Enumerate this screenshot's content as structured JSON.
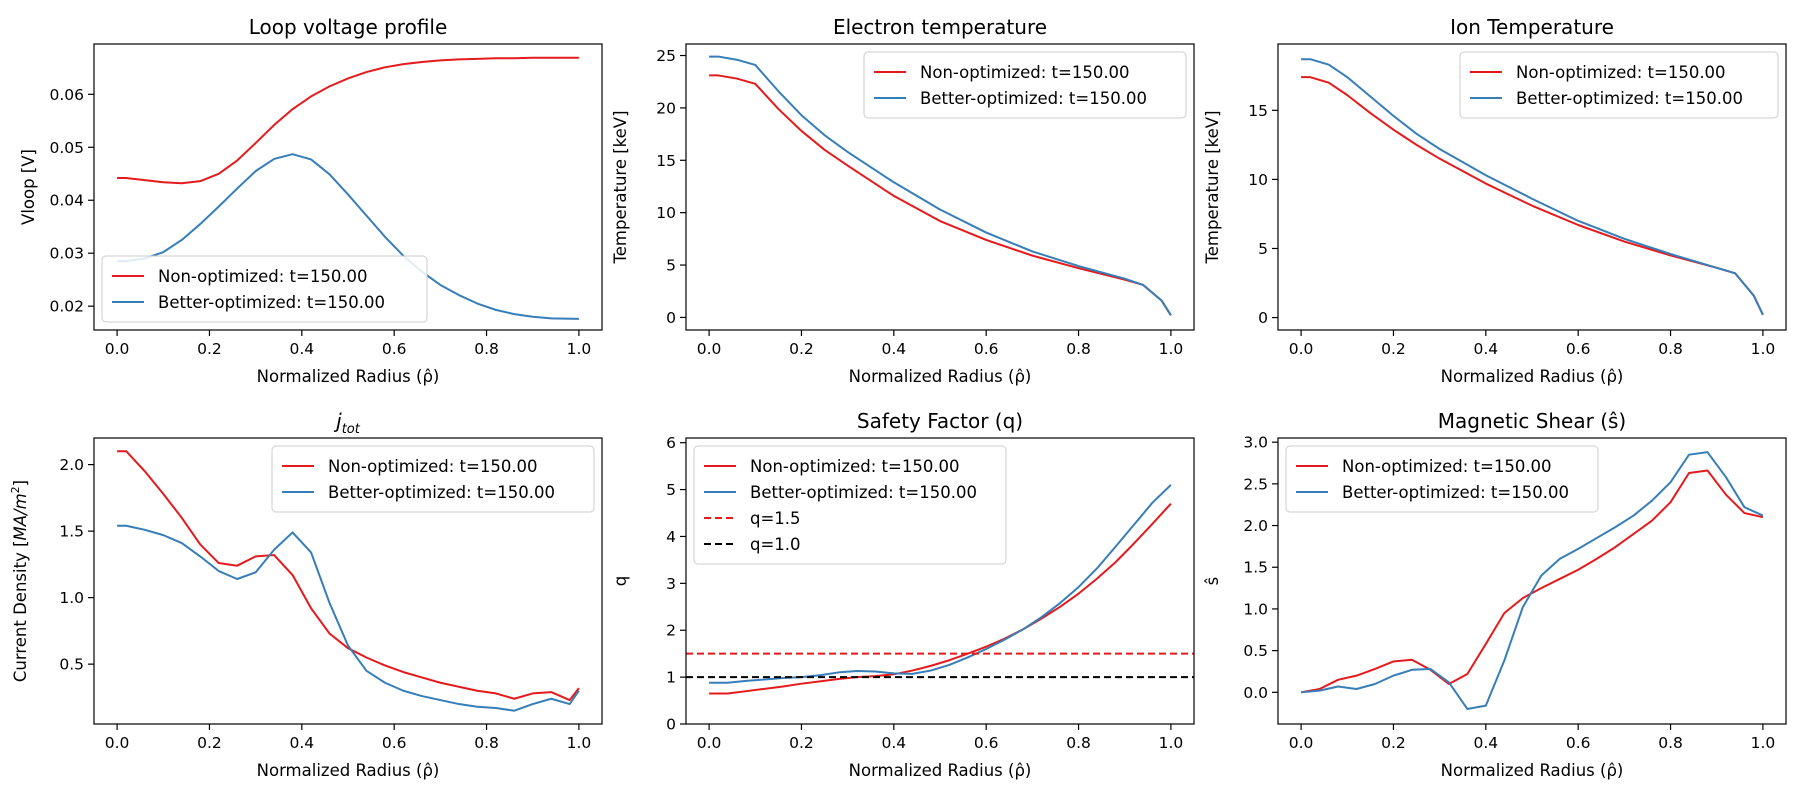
{
  "colors": {
    "red": "#e41a1c",
    "blue": "#377eb8",
    "black": "#000000"
  },
  "chart_data": [
    {
      "type": "line",
      "title": "Loop voltage profile",
      "xlabel": "Normalized Radius (ρ̂)",
      "ylabel": "Vloop [V]",
      "xlim": [
        -0.05,
        1.05
      ],
      "ylim": [
        0.0155,
        0.0695
      ],
      "xticks": [
        0,
        0.2,
        0.4,
        0.6,
        0.8,
        1.0
      ],
      "xtick_labels": [
        "0.0",
        "0.2",
        "0.4",
        "0.6",
        "0.8",
        "1.0"
      ],
      "yticks": [
        0.02,
        0.03,
        0.04,
        0.05,
        0.06
      ],
      "ytick_labels": [
        "0.02",
        "0.03",
        "0.04",
        "0.05",
        "0.06"
      ],
      "grid": false,
      "legend_loc": "lower-left",
      "series": [
        {
          "name": "Non-optimized: t=150.00",
          "color": "#e41a1c",
          "dash": "solid",
          "x": [
            0,
            0.02,
            0.06,
            0.1,
            0.14,
            0.18,
            0.22,
            0.26,
            0.3,
            0.34,
            0.38,
            0.42,
            0.46,
            0.5,
            0.54,
            0.58,
            0.62,
            0.66,
            0.7,
            0.74,
            0.78,
            0.82,
            0.86,
            0.9,
            0.94,
            1.0
          ],
          "y": [
            0.0442,
            0.0442,
            0.0438,
            0.0434,
            0.0432,
            0.0436,
            0.045,
            0.0475,
            0.0508,
            0.0542,
            0.0572,
            0.0596,
            0.0615,
            0.063,
            0.0642,
            0.0651,
            0.0657,
            0.0661,
            0.0664,
            0.0666,
            0.0667,
            0.0668,
            0.0668,
            0.0669,
            0.0669,
            0.0669
          ]
        },
        {
          "name": "Better-optimized: t=150.00",
          "color": "#377eb8",
          "dash": "solid",
          "x": [
            0,
            0.02,
            0.06,
            0.1,
            0.14,
            0.18,
            0.22,
            0.26,
            0.3,
            0.34,
            0.38,
            0.42,
            0.46,
            0.5,
            0.54,
            0.58,
            0.62,
            0.66,
            0.7,
            0.74,
            0.78,
            0.82,
            0.86,
            0.9,
            0.94,
            1.0
          ],
          "y": [
            0.0285,
            0.0285,
            0.029,
            0.0302,
            0.0325,
            0.0355,
            0.0388,
            0.0422,
            0.0455,
            0.0478,
            0.0487,
            0.0477,
            0.0449,
            0.0411,
            0.0371,
            0.0331,
            0.0295,
            0.0265,
            0.024,
            0.0221,
            0.0205,
            0.0193,
            0.0185,
            0.018,
            0.0177,
            0.0176
          ]
        }
      ]
    },
    {
      "type": "line",
      "title": "Electron temperature",
      "xlabel": "Normalized Radius (ρ̂)",
      "ylabel": "Temperature [keV]",
      "xlim": [
        -0.05,
        1.05
      ],
      "ylim": [
        -1.2,
        26.1
      ],
      "xticks": [
        0,
        0.2,
        0.4,
        0.6,
        0.8,
        1.0
      ],
      "xtick_labels": [
        "0.0",
        "0.2",
        "0.4",
        "0.6",
        "0.8",
        "1.0"
      ],
      "yticks": [
        0,
        5,
        10,
        15,
        20,
        25
      ],
      "ytick_labels": [
        "0",
        "5",
        "10",
        "15",
        "20",
        "25"
      ],
      "grid": false,
      "legend_loc": "top-right",
      "series": [
        {
          "name": "Non-optimized: t=150.00",
          "color": "#e41a1c",
          "dash": "solid",
          "x": [
            0,
            0.02,
            0.06,
            0.1,
            0.15,
            0.2,
            0.25,
            0.3,
            0.4,
            0.5,
            0.6,
            0.7,
            0.8,
            0.9,
            0.94,
            0.98,
            1.0
          ],
          "y": [
            23.1,
            23.1,
            22.8,
            22.3,
            19.9,
            17.8,
            16.0,
            14.5,
            11.6,
            9.2,
            7.4,
            5.9,
            4.7,
            3.6,
            3.1,
            1.6,
            0.2
          ]
        },
        {
          "name": "Better-optimized: t=150.00",
          "color": "#377eb8",
          "dash": "solid",
          "x": [
            0,
            0.02,
            0.06,
            0.1,
            0.15,
            0.2,
            0.25,
            0.3,
            0.4,
            0.5,
            0.6,
            0.7,
            0.8,
            0.9,
            0.94,
            0.98,
            1.0
          ],
          "y": [
            24.9,
            24.9,
            24.6,
            24.1,
            21.6,
            19.3,
            17.4,
            15.8,
            12.9,
            10.3,
            8.1,
            6.3,
            4.9,
            3.7,
            3.1,
            1.6,
            0.2
          ]
        }
      ]
    },
    {
      "type": "line",
      "title": "Ion Temperature",
      "xlabel": "Normalized Radius (ρ̂)",
      "ylabel": "Temperature [keV]",
      "xlim": [
        -0.05,
        1.05
      ],
      "ylim": [
        -0.9,
        19.8
      ],
      "xticks": [
        0,
        0.2,
        0.4,
        0.6,
        0.8,
        1.0
      ],
      "xtick_labels": [
        "0.0",
        "0.2",
        "0.4",
        "0.6",
        "0.8",
        "1.0"
      ],
      "yticks": [
        0,
        5,
        10,
        15
      ],
      "ytick_labels": [
        "0",
        "5",
        "10",
        "15"
      ],
      "grid": false,
      "legend_loc": "top-right",
      "series": [
        {
          "name": "Non-optimized: t=150.00",
          "color": "#e41a1c",
          "dash": "solid",
          "x": [
            0,
            0.02,
            0.06,
            0.1,
            0.15,
            0.2,
            0.25,
            0.3,
            0.4,
            0.5,
            0.6,
            0.7,
            0.8,
            0.9,
            0.94,
            0.98,
            1.0
          ],
          "y": [
            17.4,
            17.4,
            17.0,
            16.1,
            14.8,
            13.6,
            12.5,
            11.5,
            9.7,
            8.1,
            6.7,
            5.5,
            4.5,
            3.6,
            3.2,
            1.6,
            0.2
          ]
        },
        {
          "name": "Better-optimized: t=150.00",
          "color": "#377eb8",
          "dash": "solid",
          "x": [
            0,
            0.02,
            0.06,
            0.1,
            0.15,
            0.2,
            0.25,
            0.3,
            0.4,
            0.5,
            0.6,
            0.7,
            0.8,
            0.9,
            0.94,
            0.98,
            1.0
          ],
          "y": [
            18.7,
            18.7,
            18.3,
            17.4,
            16.0,
            14.6,
            13.3,
            12.2,
            10.3,
            8.6,
            7.0,
            5.7,
            4.6,
            3.6,
            3.2,
            1.6,
            0.2
          ]
        }
      ]
    },
    {
      "type": "line",
      "title": "j_tot",
      "xlabel": "Normalized Radius (ρ̂)",
      "ylabel": "Current Density [MA/m²]",
      "xlim": [
        -0.05,
        1.05
      ],
      "ylim": [
        0.05,
        2.2
      ],
      "xticks": [
        0,
        0.2,
        0.4,
        0.6,
        0.8,
        1.0
      ],
      "xtick_labels": [
        "0.0",
        "0.2",
        "0.4",
        "0.6",
        "0.8",
        "1.0"
      ],
      "yticks": [
        0.5,
        1.0,
        1.5,
        2.0
      ],
      "ytick_labels": [
        "0.5",
        "1.0",
        "1.5",
        "2.0"
      ],
      "grid": false,
      "legend_loc": "top-right",
      "series": [
        {
          "name": "Non-optimized: t=150.00",
          "color": "#e41a1c",
          "dash": "solid",
          "x": [
            0,
            0.02,
            0.06,
            0.1,
            0.14,
            0.18,
            0.22,
            0.26,
            0.3,
            0.34,
            0.38,
            0.42,
            0.46,
            0.5,
            0.54,
            0.58,
            0.62,
            0.66,
            0.7,
            0.74,
            0.78,
            0.82,
            0.86,
            0.9,
            0.94,
            0.98,
            1.0
          ],
          "y": [
            2.1,
            2.1,
            1.95,
            1.78,
            1.6,
            1.4,
            1.26,
            1.24,
            1.31,
            1.32,
            1.17,
            0.92,
            0.73,
            0.62,
            0.55,
            0.49,
            0.44,
            0.4,
            0.36,
            0.33,
            0.3,
            0.28,
            0.24,
            0.28,
            0.29,
            0.23,
            0.32
          ]
        },
        {
          "name": "Better-optimized: t=150.00",
          "color": "#377eb8",
          "dash": "solid",
          "x": [
            0,
            0.02,
            0.06,
            0.1,
            0.14,
            0.18,
            0.22,
            0.26,
            0.3,
            0.34,
            0.38,
            0.42,
            0.46,
            0.5,
            0.54,
            0.58,
            0.62,
            0.66,
            0.7,
            0.74,
            0.78,
            0.82,
            0.86,
            0.9,
            0.94,
            0.98,
            1.0
          ],
          "y": [
            1.54,
            1.54,
            1.51,
            1.47,
            1.41,
            1.31,
            1.2,
            1.14,
            1.19,
            1.36,
            1.49,
            1.34,
            0.96,
            0.64,
            0.45,
            0.36,
            0.3,
            0.26,
            0.23,
            0.2,
            0.18,
            0.17,
            0.15,
            0.2,
            0.24,
            0.2,
            0.3
          ]
        }
      ]
    },
    {
      "type": "line",
      "title": "Safety Factor (q)",
      "xlabel": "Normalized Radius (ρ̂)",
      "ylabel": "q",
      "xlim": [
        -0.05,
        1.05
      ],
      "ylim": [
        0,
        6.1
      ],
      "xticks": [
        0,
        0.2,
        0.4,
        0.6,
        0.8,
        1.0
      ],
      "xtick_labels": [
        "0.0",
        "0.2",
        "0.4",
        "0.6",
        "0.8",
        "1.0"
      ],
      "yticks": [
        0,
        1,
        2,
        3,
        4,
        5,
        6
      ],
      "ytick_labels": [
        "0",
        "1",
        "2",
        "3",
        "4",
        "5",
        "6"
      ],
      "grid": false,
      "legend_loc": "top-left",
      "series": [
        {
          "name": "Non-optimized: t=150.00",
          "color": "#e41a1c",
          "dash": "solid",
          "x": [
            0,
            0.04,
            0.08,
            0.12,
            0.16,
            0.2,
            0.24,
            0.28,
            0.32,
            0.36,
            0.4,
            0.44,
            0.48,
            0.52,
            0.56,
            0.6,
            0.64,
            0.68,
            0.72,
            0.76,
            0.8,
            0.84,
            0.88,
            0.92,
            0.96,
            1.0
          ],
          "y": [
            0.65,
            0.65,
            0.7,
            0.75,
            0.8,
            0.86,
            0.91,
            0.96,
            1.0,
            1.02,
            1.06,
            1.14,
            1.24,
            1.36,
            1.5,
            1.65,
            1.82,
            2.02,
            2.25,
            2.5,
            2.78,
            3.1,
            3.45,
            3.85,
            4.27,
            4.7
          ]
        },
        {
          "name": "Better-optimized: t=150.00",
          "color": "#377eb8",
          "dash": "solid",
          "x": [
            0,
            0.04,
            0.08,
            0.12,
            0.16,
            0.2,
            0.24,
            0.28,
            0.32,
            0.36,
            0.4,
            0.44,
            0.48,
            0.52,
            0.56,
            0.6,
            0.64,
            0.68,
            0.72,
            0.76,
            0.8,
            0.84,
            0.88,
            0.92,
            0.96,
            1.0
          ],
          "y": [
            0.88,
            0.88,
            0.92,
            0.95,
            0.98,
            1.0,
            1.04,
            1.1,
            1.13,
            1.12,
            1.08,
            1.07,
            1.14,
            1.26,
            1.42,
            1.6,
            1.8,
            2.02,
            2.28,
            2.58,
            2.92,
            3.32,
            3.78,
            4.25,
            4.72,
            5.1
          ]
        },
        {
          "name": "q=1.5",
          "color": "#e41a1c",
          "dash": "dashed",
          "x": [
            -0.05,
            1.05
          ],
          "y": [
            1.5,
            1.5
          ]
        },
        {
          "name": "q=1.0",
          "color": "#000000",
          "dash": "dashed",
          "x": [
            -0.05,
            1.05
          ],
          "y": [
            1.0,
            1.0
          ]
        }
      ]
    },
    {
      "type": "line",
      "title": "Magnetic Shear (ŝ)",
      "xlabel": "Normalized Radius (ρ̂)",
      "ylabel": "ŝ",
      "xlim": [
        -0.05,
        1.05
      ],
      "ylim": [
        -0.38,
        3.05
      ],
      "xticks": [
        0,
        0.2,
        0.4,
        0.6,
        0.8,
        1.0
      ],
      "xtick_labels": [
        "0.0",
        "0.2",
        "0.4",
        "0.6",
        "0.8",
        "1.0"
      ],
      "yticks": [
        0,
        0.5,
        1.0,
        1.5,
        2.0,
        2.5,
        3.0
      ],
      "ytick_labels": [
        "0.0",
        "0.5",
        "1.0",
        "1.5",
        "2.0",
        "2.5",
        "3.0"
      ],
      "grid": false,
      "legend_loc": "top-left",
      "series": [
        {
          "name": "Non-optimized: t=150.00",
          "color": "#e41a1c",
          "dash": "solid",
          "x": [
            0,
            0.04,
            0.08,
            0.12,
            0.16,
            0.2,
            0.24,
            0.28,
            0.32,
            0.36,
            0.4,
            0.44,
            0.48,
            0.52,
            0.56,
            0.6,
            0.64,
            0.68,
            0.72,
            0.76,
            0.8,
            0.84,
            0.88,
            0.92,
            0.96,
            1.0
          ],
          "y": [
            0,
            0.04,
            0.15,
            0.2,
            0.28,
            0.37,
            0.39,
            0.27,
            0.1,
            0.22,
            0.58,
            0.95,
            1.13,
            1.25,
            1.36,
            1.47,
            1.6,
            1.74,
            1.9,
            2.06,
            2.28,
            2.63,
            2.66,
            2.37,
            2.15,
            2.1
          ]
        },
        {
          "name": "Better-optimized: t=150.00",
          "color": "#377eb8",
          "dash": "solid",
          "x": [
            0,
            0.04,
            0.08,
            0.12,
            0.16,
            0.2,
            0.24,
            0.28,
            0.32,
            0.36,
            0.4,
            0.44,
            0.48,
            0.52,
            0.56,
            0.6,
            0.64,
            0.68,
            0.72,
            0.76,
            0.8,
            0.84,
            0.88,
            0.92,
            0.96,
            1.0
          ],
          "y": [
            0,
            0.02,
            0.07,
            0.04,
            0.1,
            0.2,
            0.27,
            0.28,
            0.12,
            -0.2,
            -0.16,
            0.38,
            1.02,
            1.4,
            1.6,
            1.72,
            1.85,
            1.98,
            2.12,
            2.3,
            2.52,
            2.85,
            2.88,
            2.58,
            2.22,
            2.12
          ]
        }
      ]
    }
  ]
}
